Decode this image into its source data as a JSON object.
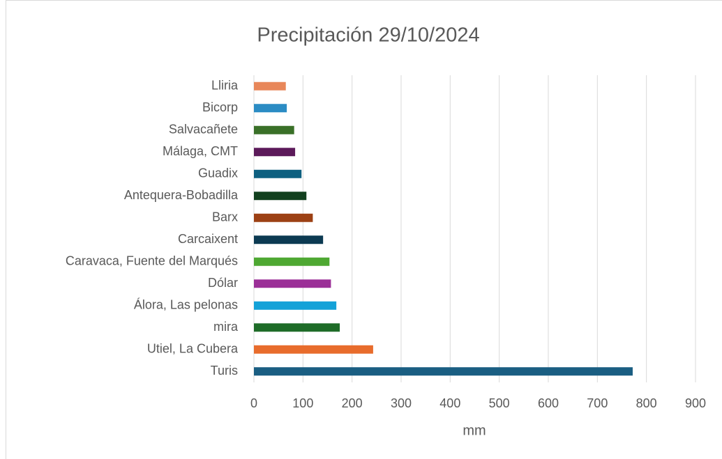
{
  "chart_data": {
    "type": "barh",
    "title": "Precipitación 29/10/2024",
    "x_label": "mm",
    "categories": [
      "Lliria",
      "Bicorp",
      "Salvacañete",
      "Málaga, CMT",
      "Guadix",
      "Antequera-Bobadilla",
      "Barx",
      "Carcaixent",
      "Caravaca, Fuente del Marqués",
      "Dólar",
      "Álora, Las pelonas",
      "mira",
      "Utiel, La Cubera",
      "Turis"
    ],
    "values": [
      65,
      67,
      82,
      84,
      97,
      107,
      120,
      141,
      154,
      157,
      168,
      175,
      243,
      772
    ],
    "colors": [
      "#e8875a",
      "#2b8cc4",
      "#3a7028",
      "#5c1a5a",
      "#0e6080",
      "#12401e",
      "#9c4014",
      "#0c3a52",
      "#4ea832",
      "#9b2f97",
      "#14a2d8",
      "#1e6c28",
      "#e86c2c",
      "#1a5e82"
    ],
    "xlim": [
      0,
      900
    ],
    "xticks": [
      0,
      100,
      200,
      300,
      400,
      500,
      600,
      700,
      800,
      900
    ],
    "grid": true
  }
}
